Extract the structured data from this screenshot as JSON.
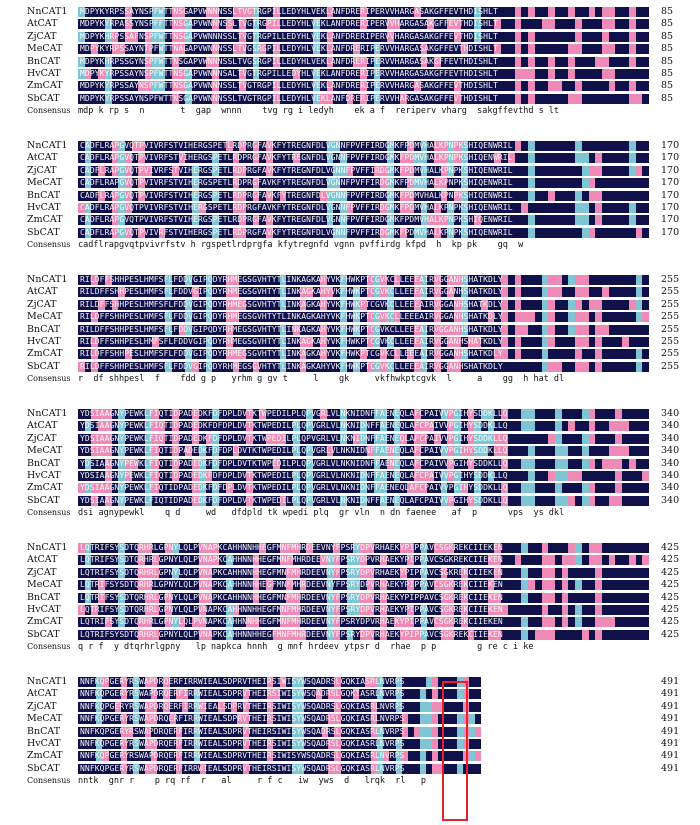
{
  "colors": {
    "identical": "#10104a",
    "high": "#ee8ab5",
    "partial": "#7ec6d4",
    "box": "#e8202a"
  },
  "species": [
    "NnCAT1",
    "AtCAT",
    "ZjCAT",
    "MeCAT",
    "BnCAT",
    "HvCAT",
    "ZmCAT",
    "SbCAT"
  ],
  "consensus_label": "Consensus",
  "blocks": [
    {
      "end": "85",
      "consensus": "mdp k rp s  n       t  gap  wnnn    tvg rg i ledyh    ek a f  reriperv vharg  sakgffevthd s lt",
      "sequences": [
        "MDPYKYRPSSAYNSPFWTTNSGAPVWNNNSSLTVGTRGPILLEDYHLVEKLANFDRERIPERVVHARGASAKGFFEVTHDISHLT",
        "MDPYKYRPASSYNSPFFTTNSGAPVWNNNSSLTVGTRGPILLEDYHLVEKLANFDRERIPERVVHARGASAKGFFEVTHDISHLT",
        "MDPYKHRPSSAFNSPFWTTNSGAPVWNNNSSLTVGTRGPILLEDYHLVEKLANFDRERIPERVVHARGASAKGFFEVTHDISHLT",
        "MDPYKYRPSSAYNTPFWTTNAGAPVWNNNSSLTVGSRGPILLEDYHLVEKLANFDRERIPERVVHARGASAKGFFEVTHDISHLT",
        "MDPYKHRPSSGYNSPFWTTNSGAPVWNNNSSLTVGSRGPILLEDYHLVEKLANFDRERIPERVVHARGASAKGFFEVTHDISHLT",
        "MDPYKYRPSSAYNSPFWTTNSGAPVWNNNSALTVGTRGPILLEDYHLVEKLANFDRERIPERVVHARGASAKGFFEVTHDISHLT",
        "MDPYKYRPSSAYNSPFWTTNSGAPVWNNNSSLTVGTRGPILLEDYHLVEKLANFDRERIPERVVHARGASAKGFFEVTHDISHLT",
        "MDPYKYRPSSAYNSPFWTTNSGAPVWNNNSSLTVGTRGPILLEDYHLVEKLANFDRERIPERVVHARGASAKGFFEVTHDISHLT"
      ]
    },
    {
      "end": "170",
      "consensus": "cadflrapgvqtpvivrfstv h rgspetlrdprgfa kfytregnfd vgnn pvffirdg kfpd  h  kp pk    gq  w",
      "sequences": [
        "CADFLRAPGVQTPVIVRFSTVIHERGSPETLRDPRGFAVKFYTREGNFDLVGNNFPVFFIRDGMKFPDMVHALKPNPKSHIQENWRIL",
        "CADFLRAPGVQTPVIVRFSTVIHERGSPETLRDPRGFAVKFYTREGNFDLVGNNFPVFFIRDGMKFPDMVHALKPNPKSHIQENWRIL",
        "CADFLRAPGVQTPVIVRFSTVIHERGSPETLRDPRGFAVKFYTREGNFDLVGNNFPVFFIRDGMKFPDMVHALKPNPKSHIQENWRIL",
        "CADFLRAPGVQTPVIVRFSTVIHERGSPETLRDPRGFAVKFYTREGNFDLVGNNFPVFFIRDGMKFPDMVHALKPNPKSHIQENWRIL",
        "CADFLRAPGVQTPVIVRFSTVIHERGSPETLRDPRGFAVKFYTREGNFDLVGNNFPVFFIRDGMKFPDMVHALKPNPKSHIQENWRIL",
        "CADFLRAPGVQTPVIVRFSTVIHERGSPETLRDPRGFAVKFYTREGNFDLVGNNFPVFFIRDGMKFPDMVHALKPNPKSHIQENWRIL",
        "CADFLRAPGVQTPVIVRFSTVIHERGSPETLRDPRGFAVKFYTREGNFDLVGNNFPVFFIRDGMKFPDMVHALKPNPKSHIQENWRIL",
        "CADFLRAPGVQTPVIVRFSTVIHERGSPETLRDPRGFAVKFYTREGNFDLVGNNFPVFFIRDGMKFPDMVHALKPNPKSHIQENWRIL"
      ]
    },
    {
      "end": "255",
      "consensus": "r  df shhpesl  f    fdd g p   yrhm g gv t     l    gk     vkfhwkptcgvk  l     a    gg  h hat dl",
      "sequences": [
        "RILDFFSHHPESLHMFSFLFDDVGIPQDYRHMEGSGVHTYTLINKAGKAHYVKFHWKPTCGVKCLLEEEAIRVGGANHSHATKDLY",
        "RILDFFSHHPESLHMFSFLFDDVGIPQDYRHMEGSGVHTYTLINKAGKAHYVKFHWKPTCGVKCLLEEEAIRVGGANHSHATKDLY",
        "RILDFFSHHPESLHMFSFLFDDVGIPQDYRHMEGSGVHTYTLINKAGKAHYVKFHWKPTCGVKCLLEEEAIRVGGANHSHATKDLY",
        "RILDFFSHHPESLHMFSFLFDDVGIPQDYRHMEGSGVHTYTLINKAGKAHYVKFHWKPTCGVKCLLEEEAIRVGGANHSHATKDLY",
        "RILDFFSHHPESLHMFSFLFDDVGIPQDYRHMEGSGVHTYTLINKAGKAHYVKFHWKPTCGVKCLLEEEAIRVGGANHSHATKDLY",
        "RILDFFSHHPESLHMFSFLFDDVGIPQDYRHMEGSGVHTYTLINKAGKAHYVKFHWKPTCGVKCLLEEEAIRVGGANHSHATKDLY",
        "RILDFFSHHPESLHMFSFLFDDVGIPQDYRHMEGSGVHTYTLINKAGKAHYVKFHWKPTCGVKCLLEEEAIRVGGANHSHATKDLY",
        "RILDFFSHHPESLHMFSFLFDDVGIPQDYRHMEGSGVHTYTLINKAGKAHYVKFHWKPTCGVKCLLEEEAIRVGGANHSHATKDLY"
      ]
    },
    {
      "end": "340",
      "consensus": "dsi agnypewkl    q d     wd   dfdpld tk wpedi plq  gr vln  n dn faenee   af  p      vps  ys dkl",
      "sequences": [
        "YDSIAAGNYPEWKLFIQTIDPADEDKFDFDPLDVTKTWPEDILPLQPVGRLVLNKNIDNFFAENEQLAFCPAIVVPGIHYSDDKLLQ",
        "YDSIAAGNYPEWKLFIQTIDPADEDKFDFDPLDVTKTWPEDILPLQPVGRLVLNKNIDNFFAENEQLAFCPAIVVPGIHYSDDKLLQ",
        "YDSIAAGNYPEWKLFIQTIDPADEDKFDFDPLDVTKTWPEDILPLQPVGRLVLNKNIDNFFAENEQLAFCPAIVVPGIHYSDDKLLQ",
        "YDSIAAGNYPEWKLFIQTIDPADEDKFDFDPLDVTKTWPEDILPLQPVGRLVLNKNIDNFFAENEQLAFCPAIVVPGIHYSDDKLLQ",
        "YDSIAAGNYPEWKLFIQTIDPADEDKFDFDPLDVTKTWPEDILPLQPVGRLVLNKNIDNFFAENEQLAFCPAIVVPGIHYSDDKLLQ",
        "YDSIAAGNYPEWKLFIQTIDPADEDKFDFDPLDVTKTWPEDILPLQPVGRLVLNKNIDNFFAENEQLAFCPAIVVPGIHYSDDKLLQ",
        "YDSIAAGNYPEWKLFIQTIDPADEDKFDFDPLDVTKTWPEDILPLQPVGRLVLNKNIDNFFAENEQLAFCPAIVVPGIHYSDDKLLQ",
        "YDSIAAGNYPEWKLFIQTIDPADEDKFDFDPLDVTKTWPEDILPLQPVGRLVLNKNIDNFFAENEQLAFCPAIVVPGIHYSDDKLLQ"
      ]
    },
    {
      "end": "425",
      "consensus": "q r f  y dtqrhrlgpny   lp napkca hnnh  g mnf hrdeev ytpsr d  rhae  p p        g re c i ke",
      "sequences": [
        "LQTRIFSYSDTQRHRLGPNYLQLPVNAPKCAHHNNHHEGFMNFMHRDEEVNYFPSRYDPVRHAEKYPIPPAVCSGKREKCIIEKEN",
        "LQTRIFSYSDTQRHRLGPNYLQLPVNAPKCAHHNNHHEGFMNFMHRDEEVNYFPSRYDPVRHAEKYPIPPAVCSGKREKCIIEKEN",
        "LQTRIFSYSDTQRHRLGPNYLQLPVNAPKCAHHNNHHEGFMNFMHRDEEVNYFPSRYDPVRHAEKYPIPPAVCSGKREKCIIEKEN",
        "LQTRIFSYSDTQRHRLGPNYLQLPVNAPKCAHHNNHHEGFMNFMHRDEEVNYFPSRYDPVRHAEKYPIPPAVCSGKREKCIIEKEN",
        "LQTRIFSYSDTQRHRLGPNYLQLPVNAPKCAHHNNHHEGFMNFMHRDEEVNYFPSRYDPVRHAEKYPIPPAVCSGKREKCIIEKEN",
        "LQTRIFSYSDTQRHRLGPNYLQLPVNAPKCAHHNNHHEGFMNFMHRDEEVNYFPSRYDPVRHAEKYPIPPAVCSGKREKCIIEKEN",
        "LQTRIFSYSDTQRHRLGPNYLQLPVNAPKCAHHNNHHEGFMNFMHRDEEVNYFPSRYDPVRHAEKYPIPPAVCSGKREKCIIEKEN",
        "LQTRIFSYSDTQRHRLGPNYLQLPVNAPKCAHHNNHHEGFMNFMHRDEEVNYFPSRYDPVRHAEKYPIPPAVCSGKREKCIIEKEN"
      ]
    },
    {
      "end": "491",
      "consensus": "nntk  gnr r    p rq rf  r   al     r f c   iw  yws  d   lrqk  rl   p",
      "sequences": [
        "NNFKQPGERYRSWAPDRQERFIRRWIEALSDPRVTHEIRSIWISYWSQADRSLGQKIASRLNVRPS",
        "NNFKQPGERYRSWAPDRQERFIRRWIEALSDPRVTHEIRSIWISYWSQADRSLGQKIASRLNVRPS",
        "NNFKQPGERYRSWAPDRQERFIRRWIEALSDPRVTHEIRSIWISYWSQADRSLGQKIASRLNVRPS",
        "NNFKQPGERYRSWAPDRQERFIRRWIEALSDPRVTHEIRSIWISYWSQADRSLGQKIASRLNVRPS",
        "NNFKQPGERYRSWAPDRQERFIRRWIEALSDPRVTHEIRSIWISYWSQADRSLGQKIASRLNVRPS",
        "NNFKQPGERYRSWAPDRQERFIRRWIEALSDPRVTHEIRSIWISYWSQADRSLGQKIASRLNVRPS",
        "NNFKQPGERYRSWAPDRQERFIRRWIEALSDPRVTHEIRSIWISYWSQADRSLGQKIASRLNVRPS",
        "NNFKQPGERYRSWAPDRQERFIRRWIEALSDPRVTHEIRSIWISYWSQADRSLGQKIASRLNVRPS"
      ]
    }
  ]
}
